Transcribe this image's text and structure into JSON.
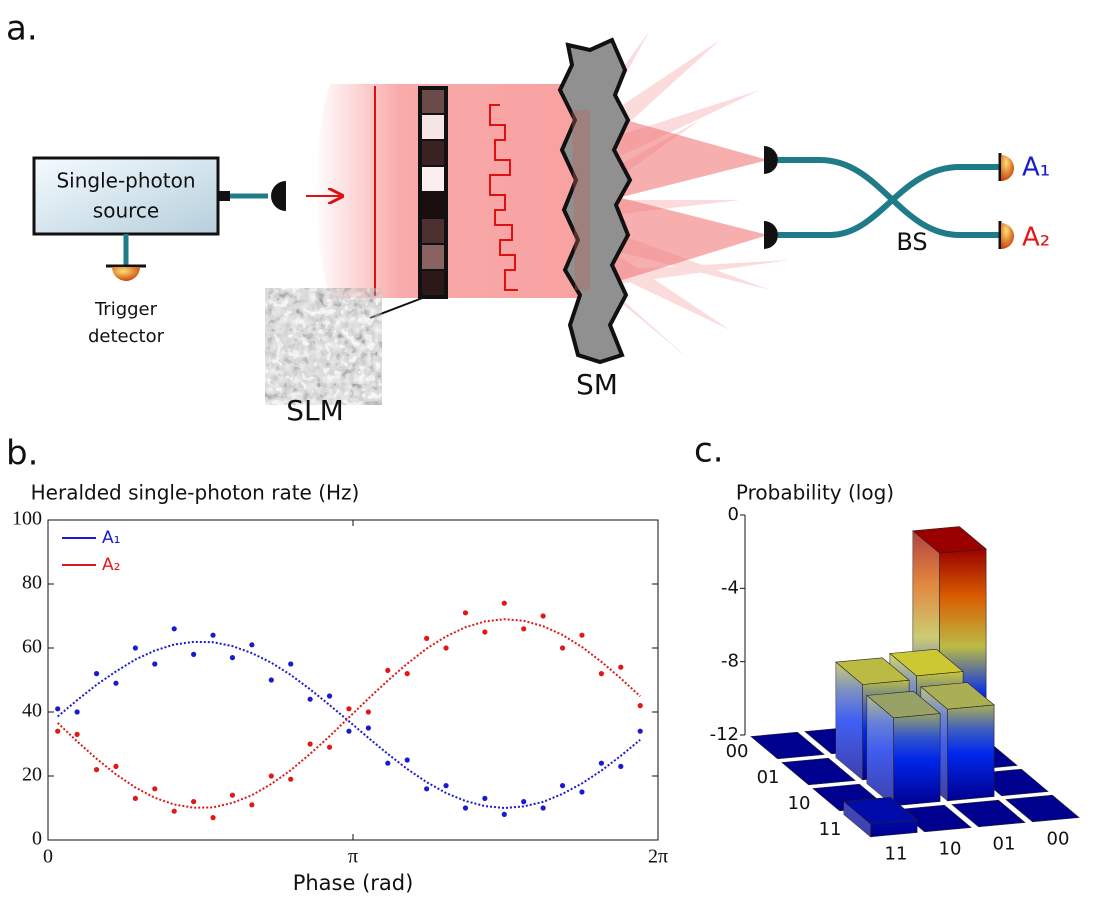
{
  "diagram": {
    "label": "a.",
    "source": [
      "Single-photon",
      "source"
    ],
    "trigger": [
      "Trigger",
      "detector"
    ],
    "slm": "SLM",
    "sm": "SM",
    "bs": "BS",
    "outputs": [
      "A₁",
      "A₂"
    ]
  },
  "chart_data": [
    {
      "type": "scatter",
      "label": "b.",
      "title": "Heralded single-photon rate (Hz)",
      "x_label": "Phase (rad)",
      "xlim": [
        0,
        6.2832
      ],
      "xticks": [
        0,
        {
          "value": 3.1416,
          "label": "π"
        },
        {
          "value": 6.2832,
          "label": "2π"
        }
      ],
      "ylim": [
        0,
        100
      ],
      "yticks": [
        0,
        20,
        40,
        60,
        80,
        100
      ],
      "legend": "upper left",
      "series": [
        {
          "name": "A₁",
          "color": "#1a1ad0",
          "x": [
            0.1,
            0.3,
            0.5,
            0.7,
            0.9,
            1.1,
            1.3,
            1.5,
            1.7,
            1.9,
            2.1,
            2.3,
            2.5,
            2.7,
            2.9,
            3.1,
            3.3,
            3.5,
            3.7,
            3.9,
            4.1,
            4.3,
            4.5,
            4.7,
            4.9,
            5.1,
            5.3,
            5.5,
            5.7,
            5.9,
            6.1
          ],
          "values": [
            41,
            40,
            52,
            49,
            60,
            55,
            66,
            58,
            64,
            57,
            61,
            50,
            55,
            44,
            45,
            34,
            35,
            24,
            25,
            16,
            17,
            10,
            13,
            8,
            12,
            10,
            17,
            15,
            24,
            23,
            34
          ],
          "fit_values": [
            38.6,
            43.7,
            48.5,
            52.7,
            56.4,
            59.2,
            61.1,
            61.9,
            61.8,
            60.6,
            58.4,
            55.4,
            51.6,
            47.1,
            42.2,
            37.1,
            31.9,
            26.9,
            22.2,
            18.1,
            14.7,
            12.2,
            10.6,
            10.0,
            10.5,
            11.9,
            14.4,
            17.7,
            21.7,
            26.3,
            31.3
          ]
        },
        {
          "name": "A₂",
          "color": "#e01818",
          "x": [
            0.1,
            0.3,
            0.5,
            0.7,
            0.9,
            1.1,
            1.3,
            1.5,
            1.7,
            1.9,
            2.1,
            2.3,
            2.5,
            2.7,
            2.9,
            3.1,
            3.3,
            3.5,
            3.7,
            3.9,
            4.1,
            4.3,
            4.5,
            4.7,
            4.9,
            5.1,
            5.3,
            5.5,
            5.7,
            5.9,
            6.1
          ],
          "values": [
            34,
            33,
            22,
            23,
            13,
            16,
            9,
            12,
            7,
            14,
            11,
            20,
            19,
            30,
            29,
            41,
            40,
            53,
            52,
            63,
            60,
            71,
            65,
            74,
            66,
            70,
            60,
            64,
            52,
            54,
            42
          ],
          "fit_values": [
            36.6,
            30.8,
            25.4,
            20.5,
            16.4,
            13.2,
            11.1,
            10.1,
            10.2,
            11.6,
            14.0,
            17.5,
            21.8,
            26.9,
            32.4,
            38.3,
            44.2,
            49.8,
            55.1,
            59.8,
            63.6,
            66.5,
            68.3,
            69.0,
            68.5,
            66.8,
            64.1,
            60.3,
            55.7,
            50.5,
            44.9
          ]
        }
      ]
    },
    {
      "type": "bar3d",
      "label": "c.",
      "title": "Probability (log)",
      "row_categories": [
        "00",
        "01",
        "10",
        "11"
      ],
      "col_categories": [
        "11",
        "10",
        "01",
        "00"
      ],
      "values": [
        [
          -12,
          -12,
          -12,
          -1.6
        ],
        [
          -12,
          -6.8,
          -6.6,
          -12
        ],
        [
          -12,
          -7.2,
          -7.0,
          -12
        ],
        [
          -11.3,
          -12,
          -12,
          -12
        ]
      ],
      "zlim": [
        -12,
        0
      ],
      "zticks": [
        0,
        -4,
        -8,
        -12
      ],
      "colormap": [
        "#00008f",
        "#0030ff",
        "#ffee00",
        "#c00000",
        "#700000"
      ]
    }
  ]
}
